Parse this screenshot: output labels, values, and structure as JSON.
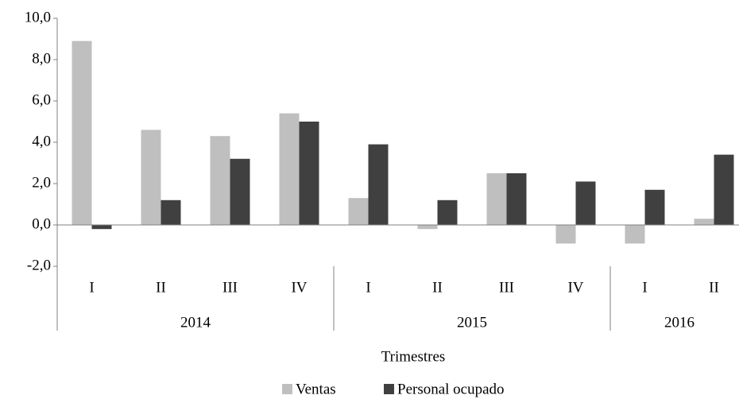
{
  "chart_data": {
    "type": "bar",
    "x_title": "Trimestres",
    "groups": [
      {
        "label": "2014",
        "categories": [
          "I",
          "II",
          "III",
          "IV"
        ]
      },
      {
        "label": "2015",
        "categories": [
          "I",
          "II",
          "III",
          "IV"
        ]
      },
      {
        "label": "2016",
        "categories": [
          "I",
          "II"
        ]
      }
    ],
    "series": [
      {
        "name": "Ventas",
        "color": "#bfbfbf",
        "values": [
          8.9,
          4.6,
          4.3,
          5.4,
          1.3,
          -0.2,
          2.5,
          -0.9,
          -0.9,
          0.3
        ]
      },
      {
        "name": "Personal ocupado",
        "color": "#404040",
        "values": [
          -0.2,
          1.2,
          3.2,
          5.0,
          3.9,
          1.2,
          2.5,
          2.1,
          1.7,
          3.4
        ]
      }
    ],
    "ylim": [
      -2,
      10
    ],
    "yticks": [
      {
        "value": -2,
        "label": "-2,0"
      },
      {
        "value": 0,
        "label": "0,0"
      },
      {
        "value": 2,
        "label": "2,0"
      },
      {
        "value": 4,
        "label": "4,0"
      },
      {
        "value": 6,
        "label": "6,0"
      },
      {
        "value": 8,
        "label": "8,0"
      },
      {
        "value": 10,
        "label": "10,0"
      }
    ],
    "grid": false,
    "legend": "bottom"
  }
}
